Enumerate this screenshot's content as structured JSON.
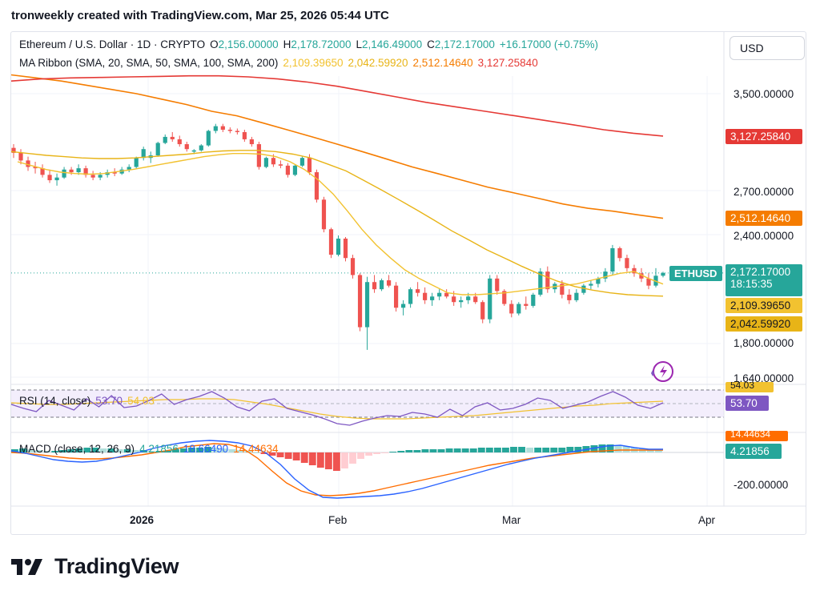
{
  "header": {
    "author": "tronweekly",
    "text": "tronweekly created with TradingView.com, Mar 25, 2026 05:44 UTC"
  },
  "symbol_line": {
    "title": "Ethereum / U.S. Dollar · 1D · CRYPTO",
    "open_label": "O",
    "open": "2,156.00000",
    "high_label": "H",
    "high": "2,178.72000",
    "low_label": "L",
    "low": "2,146.49000",
    "close_label": "C",
    "close": "2,172.17000",
    "change": "+16.17000 (+0.75%)"
  },
  "ma_line": {
    "title": "MA Ribbon (SMA, 20, SMA, 50, SMA, 100, SMA, 200)",
    "values": [
      "2,109.39650",
      "2,042.59920",
      "2,512.14640",
      "3,127.25840"
    ]
  },
  "rsi_line": {
    "title": "RSI (14, close)",
    "value": "53.70",
    "ma_value": "54.03"
  },
  "macd_line": {
    "title": "MACD (close, 12, 26, 9)",
    "hist": "4.21856",
    "macd": "18.66490",
    "signal": "14.44634"
  },
  "currency_button": "USD",
  "price_axis": [
    "3,500.00000",
    "2,700.00000",
    "2,400.00000",
    "1,800.00000",
    "1,640.00000",
    "-200.00000"
  ],
  "price_tags": {
    "sma200": "3,127.25840",
    "sma100": "2,512.14640",
    "symbol": "ETHUSD",
    "last_price": "2,172.17000",
    "countdown": "18:15:35",
    "sma20": "2,109.39650",
    "sma50": "2,042.59920",
    "rsi": "53.70",
    "rsi_ma": "54.03",
    "macd_signal": "14.44634",
    "macd_hist": "4.21856"
  },
  "time_axis": [
    "2026",
    "Feb",
    "Mar",
    "Apr"
  ],
  "brand": "TradingView",
  "colors": {
    "up": "#26a69a",
    "down": "#ef5350",
    "sma20": "#f2c230",
    "sma50": "#e8b417",
    "sma100": "#f57c00",
    "sma200": "#e53935",
    "rsi": "#7e57c2",
    "macd": "#2962ff",
    "macd_signal": "#ff6d00",
    "grid": "#f0f3fa"
  },
  "chart_data": {
    "type": "candlestick",
    "title": "Ethereum / U.S. Dollar · 1D · CRYPTO",
    "y_scale": "log",
    "ylim": [
      1640,
      3800
    ],
    "x_ticks": [
      "2026",
      "Feb",
      "Mar",
      "Apr"
    ],
    "candles": [
      [
        3030,
        3060,
        2950,
        2990
      ],
      [
        2990,
        3020,
        2900,
        2930
      ],
      [
        2930,
        2960,
        2850,
        2880
      ],
      [
        2880,
        2920,
        2830,
        2870
      ],
      [
        2870,
        2900,
        2800,
        2820
      ],
      [
        2820,
        2860,
        2760,
        2780
      ],
      [
        2780,
        2830,
        2740,
        2800
      ],
      [
        2800,
        2880,
        2790,
        2860
      ],
      [
        2860,
        2880,
        2820,
        2840
      ],
      [
        2840,
        2900,
        2820,
        2870
      ],
      [
        2870,
        2890,
        2800,
        2820
      ],
      [
        2820,
        2850,
        2780,
        2800
      ],
      [
        2800,
        2840,
        2780,
        2820
      ],
      [
        2820,
        2860,
        2800,
        2840
      ],
      [
        2840,
        2870,
        2810,
        2830
      ],
      [
        2830,
        2880,
        2820,
        2860
      ],
      [
        2860,
        2900,
        2840,
        2880
      ],
      [
        2880,
        2960,
        2870,
        2950
      ],
      [
        2950,
        3040,
        2930,
        3020
      ],
      [
        2950,
        3000,
        2910,
        2970
      ],
      [
        2970,
        3080,
        2960,
        3070
      ],
      [
        3070,
        3140,
        3060,
        3120
      ],
      [
        3120,
        3160,
        3080,
        3100
      ],
      [
        3100,
        3130,
        3040,
        3060
      ],
      [
        3060,
        3080,
        3000,
        3020
      ],
      [
        3000,
        3020,
        2980,
        3010
      ],
      [
        3010,
        3060,
        3000,
        3050
      ],
      [
        3050,
        3180,
        3040,
        3170
      ],
      [
        3170,
        3230,
        3150,
        3210
      ],
      [
        3210,
        3230,
        3160,
        3180
      ],
      [
        3180,
        3200,
        3150,
        3170
      ],
      [
        3170,
        3190,
        3140,
        3160
      ],
      [
        3160,
        3180,
        3080,
        3100
      ],
      [
        3100,
        3120,
        3040,
        3060
      ],
      [
        3060,
        3080,
        2860,
        2880
      ],
      [
        2880,
        2960,
        2870,
        2950
      ],
      [
        2950,
        2980,
        2880,
        2900
      ],
      [
        2900,
        2930,
        2870,
        2890
      ],
      [
        2890,
        2910,
        2800,
        2820
      ],
      [
        2820,
        2900,
        2810,
        2890
      ],
      [
        2890,
        2960,
        2880,
        2950
      ],
      [
        2950,
        2980,
        2820,
        2840
      ],
      [
        2840,
        2860,
        2620,
        2640
      ],
      [
        2640,
        2660,
        2420,
        2440
      ],
      [
        2440,
        2450,
        2260,
        2280
      ],
      [
        2280,
        2400,
        2270,
        2380
      ],
      [
        2380,
        2390,
        2240,
        2260
      ],
      [
        2260,
        2280,
        2140,
        2160
      ],
      [
        2160,
        2170,
        1860,
        1880
      ],
      [
        1880,
        2150,
        1770,
        2120
      ],
      [
        2120,
        2160,
        2060,
        2080
      ],
      [
        2080,
        2140,
        2070,
        2130
      ],
      [
        2130,
        2160,
        2090,
        2100
      ],
      [
        2100,
        2120,
        1960,
        1980
      ],
      [
        1980,
        2020,
        1940,
        2000
      ],
      [
        2000,
        2090,
        1980,
        2080
      ],
      [
        2080,
        2120,
        2040,
        2060
      ],
      [
        2060,
        2090,
        2000,
        2020
      ],
      [
        2020,
        2060,
        1990,
        2040
      ],
      [
        2040,
        2080,
        2020,
        2060
      ],
      [
        2060,
        2080,
        2030,
        2040
      ],
      [
        2040,
        2070,
        1990,
        2010
      ],
      [
        2010,
        2040,
        1980,
        2020
      ],
      [
        2020,
        2060,
        2000,
        2040
      ],
      [
        2040,
        2060,
        2000,
        2010
      ],
      [
        2010,
        2020,
        1900,
        1920
      ],
      [
        1920,
        2160,
        1900,
        2140
      ],
      [
        2140,
        2160,
        2050,
        2070
      ],
      [
        2070,
        2080,
        1990,
        2000
      ],
      [
        2000,
        2020,
        1930,
        1950
      ],
      [
        1950,
        2010,
        1940,
        2000
      ],
      [
        2000,
        2040,
        1970,
        1990
      ],
      [
        1990,
        2060,
        1980,
        2050
      ],
      [
        2050,
        2200,
        2040,
        2180
      ],
      [
        2180,
        2210,
        2060,
        2080
      ],
      [
        2080,
        2120,
        2060,
        2110
      ],
      [
        2110,
        2130,
        2030,
        2050
      ],
      [
        2050,
        2080,
        2000,
        2020
      ],
      [
        2020,
        2080,
        2010,
        2060
      ],
      [
        2060,
        2110,
        2050,
        2100
      ],
      [
        2100,
        2130,
        2080,
        2110
      ],
      [
        2110,
        2150,
        2090,
        2140
      ],
      [
        2140,
        2200,
        2120,
        2180
      ],
      [
        2180,
        2340,
        2160,
        2320
      ],
      [
        2320,
        2330,
        2240,
        2260
      ],
      [
        2260,
        2280,
        2180,
        2200
      ],
      [
        2200,
        2220,
        2150,
        2170
      ],
      [
        2170,
        2200,
        2120,
        2140
      ],
      [
        2140,
        2170,
        2080,
        2100
      ],
      [
        2100,
        2200,
        2090,
        2156
      ],
      [
        2156,
        2178.72,
        2146.49,
        2172.17
      ]
    ],
    "series": [
      {
        "name": "SMA 20",
        "values": [
          2920,
          2890,
          2860,
          2840,
          2830,
          2825,
          2830,
          2845,
          2860,
          2880,
          2900,
          2920,
          2940,
          2960,
          2975,
          2985,
          2985,
          2980,
          2960,
          2920,
          2860,
          2780,
          2680,
          2560,
          2440,
          2340,
          2260,
          2190,
          2140,
          2100,
          2060,
          2050,
          2050,
          2055,
          2060,
          2070,
          2080,
          2090,
          2100,
          2110,
          2130,
          2150,
          2170,
          2180,
          2140,
          2109
        ]
      },
      {
        "name": "SMA 50",
        "values": [
          3000,
          2985,
          2970,
          2960,
          2950,
          2945,
          2945,
          2950,
          2960,
          2970,
          2980,
          2995,
          3005,
          3010,
          3010,
          3000,
          2980,
          2950,
          2900,
          2850,
          2780,
          2710,
          2640,
          2570,
          2500,
          2430,
          2370,
          2310,
          2260,
          2210,
          2165,
          2125,
          2095,
          2075,
          2060,
          2050,
          2045,
          2042
        ]
      },
      {
        "name": "SMA 100",
        "values": [
          3680,
          3650,
          3620,
          3580,
          3540,
          3500,
          3450,
          3400,
          3340,
          3300,
          3240,
          3180,
          3120,
          3060,
          3000,
          2940,
          2880,
          2830,
          2780,
          2730,
          2690,
          2650,
          2610,
          2580,
          2560,
          2535,
          2512
        ]
      },
      {
        "name": "SMA 200",
        "values": [
          3620,
          3640,
          3650,
          3655,
          3660,
          3665,
          3670,
          3670,
          3660,
          3640,
          3610,
          3570,
          3520,
          3470,
          3420,
          3380,
          3340,
          3300,
          3260,
          3220,
          3180,
          3150,
          3127
        ]
      }
    ],
    "rsi": {
      "name": "RSI (14, close)",
      "last": 53.7,
      "ma_last": 54.03
    },
    "macd": {
      "name": "MACD (close, 12, 26, 9)",
      "hist_last": 4.21856,
      "macd_last": 18.6649,
      "signal_last": 14.44634
    }
  }
}
